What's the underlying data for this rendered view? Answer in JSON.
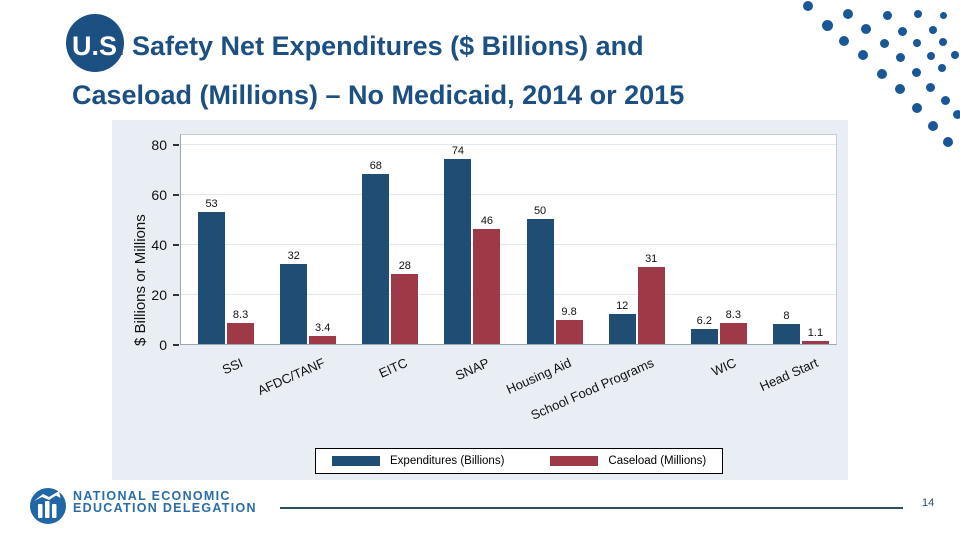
{
  "slide": {
    "title_line1_prefix": "U.S",
    "title_line1_rest": ". Safety Net Expenditures ($ Billions) and",
    "title_line2": "Caseload (Millions) – No Medicaid, 2014 or 2015",
    "page_number": "14"
  },
  "footer": {
    "org_line1": "NATIONAL ECONOMIC",
    "org_line2": "EDUCATION DELEGATION"
  },
  "chart_data": {
    "type": "bar",
    "categories": [
      "SSI",
      "AFDC/TANF",
      "EITC",
      "SNAP",
      "Housing Aid",
      "School Food Programs",
      "WIC",
      "Head Start"
    ],
    "series": [
      {
        "name": "Expenditures (Billions)",
        "color": "#1f4d74",
        "values": [
          53,
          32,
          68,
          74,
          50,
          12,
          6.2,
          8
        ]
      },
      {
        "name": "Caseload (Millions)",
        "color": "#9e3a47",
        "values": [
          8.3,
          3.4,
          28,
          46,
          9.8,
          31,
          8.3,
          1.1
        ]
      }
    ],
    "value_labels": [
      [
        "53",
        "32",
        "68",
        "74",
        "50",
        "12",
        "6.2",
        "8"
      ],
      [
        "8.3",
        "3.4",
        "28",
        "46",
        "9.8",
        "31",
        "8.3",
        "1.1"
      ]
    ],
    "title": "",
    "xlabel": "",
    "ylabel": "$ Billions or Millions",
    "yticks": [
      0,
      20,
      40,
      60,
      80
    ],
    "ylim": [
      0,
      84.4
    ],
    "grid": true,
    "legend_position": "bottom",
    "x_label_angle_deg": -24
  },
  "colors": {
    "title_blue": "#1c4f82",
    "bar_blue": "#1f4d74",
    "bar_maroon": "#9e3a47",
    "chart_bg": "#e8eef3",
    "dot_blue": "#1a5797",
    "footer_blue": "#2a6da6",
    "divider": "#2e5062"
  }
}
